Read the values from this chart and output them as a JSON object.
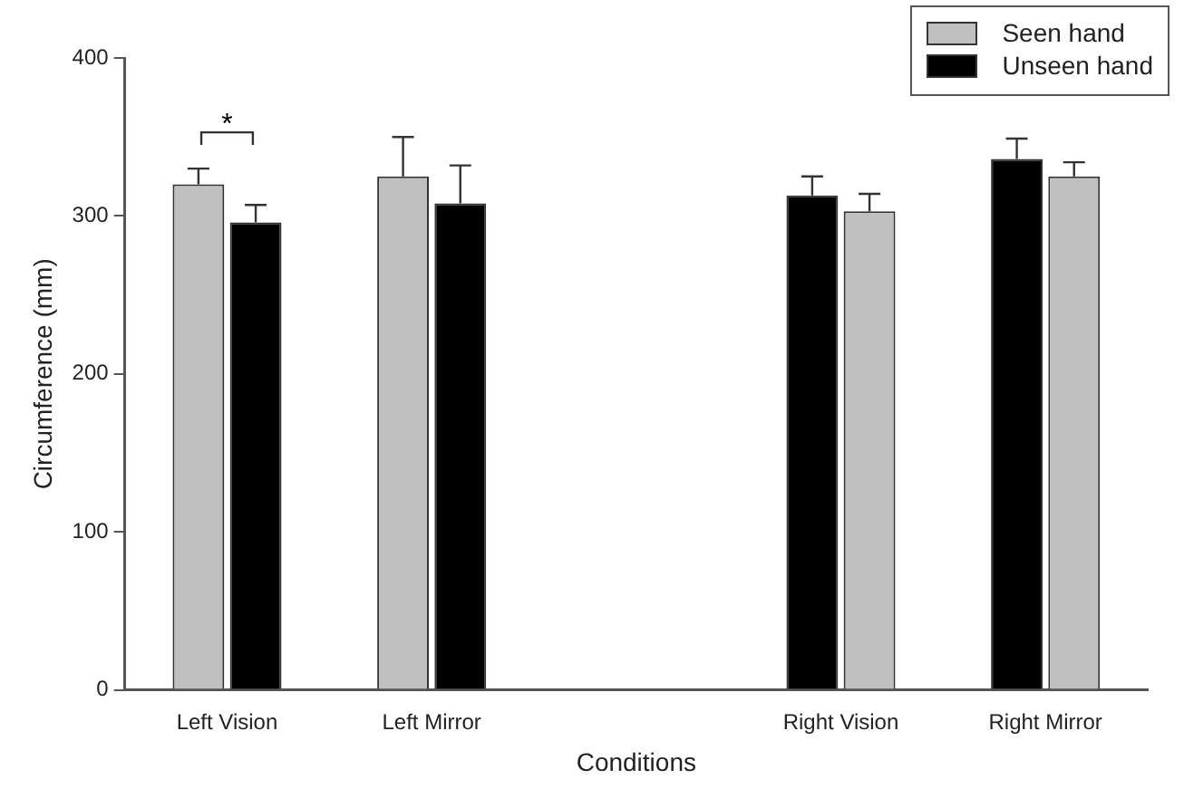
{
  "chart_data": {
    "type": "bar",
    "xlabel": "Conditions",
    "ylabel": "Circumference (mm)",
    "categories": [
      "Left Vision",
      "Left Mirror",
      null,
      "Right Vision",
      "Right Mirror"
    ],
    "series": [
      {
        "name": "Seen hand",
        "color": "#c0c0c0",
        "values": [
          320,
          325,
          null,
          null,
          null
        ],
        "errors": [
          [
            320,
            330
          ],
          [
            325,
            350
          ],
          null,
          null,
          null
        ]
      },
      {
        "name": "Unseen hand",
        "color": "#000000",
        "values": [
          296,
          308,
          null,
          313,
          336
        ],
        "errors": [
          [
            296,
            307
          ],
          [
            308,
            332
          ],
          null,
          [
            313,
            325
          ],
          [
            336,
            349
          ]
        ]
      },
      {
        "color": "#c0c0c0",
        "values": [
          null,
          null,
          null,
          303,
          325
        ],
        "errors": [
          null,
          null,
          null,
          [
            303,
            314
          ],
          [
            325,
            334
          ]
        ]
      }
    ],
    "ylim": [
      0,
      400
    ],
    "yticks": [
      0,
      100,
      200,
      300,
      400
    ],
    "grid": false,
    "legend": "top right",
    "annotations": [
      "*"
    ]
  }
}
